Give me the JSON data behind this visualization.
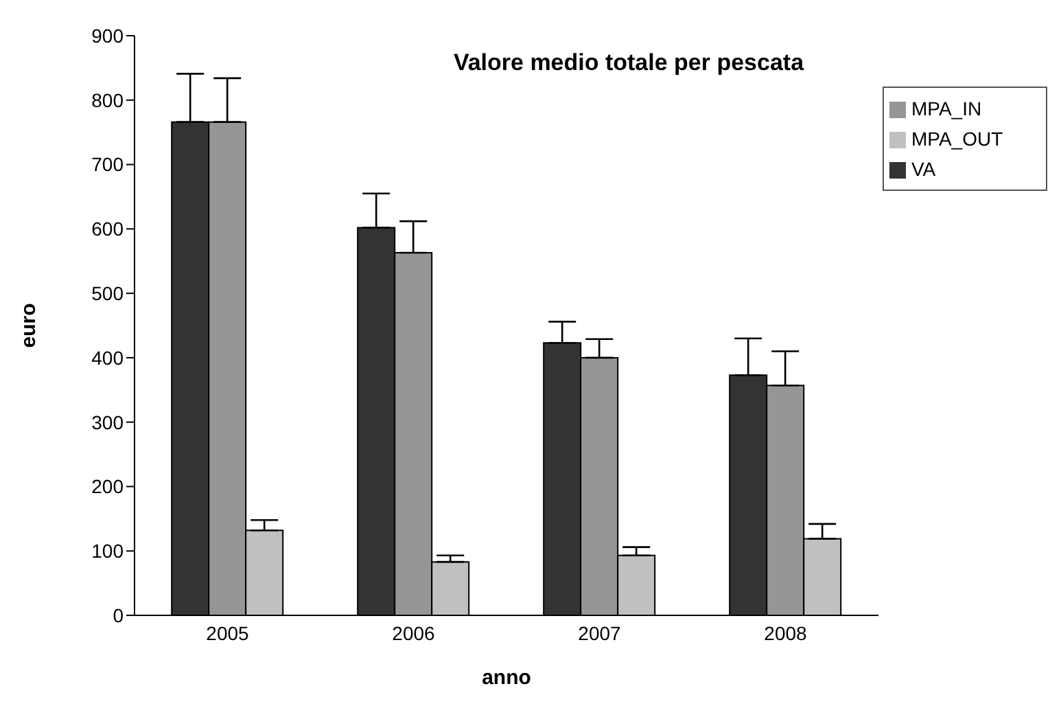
{
  "chart_data": {
    "type": "bar",
    "title": "Valore medio totale per pescata",
    "xlabel": "anno",
    "ylabel": "euro",
    "categories": [
      "2005",
      "2006",
      "2007",
      "2008"
    ],
    "series": [
      {
        "name": "VA",
        "color": "#333333",
        "values": [
          766,
          602,
          423,
          373
        ],
        "errors": [
          [
            766,
            841
          ],
          [
            602,
            655
          ],
          [
            423,
            456
          ],
          [
            373,
            430
          ]
        ]
      },
      {
        "name": "MPA_IN",
        "color": "#969696",
        "values": [
          766,
          563,
          400,
          357
        ],
        "errors": [
          [
            766,
            834
          ],
          [
            563,
            612
          ],
          [
            400,
            429
          ],
          [
            357,
            410
          ]
        ]
      },
      {
        "name": "MPA_OUT",
        "color": "#c0c0c0",
        "values": [
          132,
          83,
          93,
          119
        ],
        "errors": [
          [
            132,
            148
          ],
          [
            83,
            93
          ],
          [
            93,
            106
          ],
          [
            119,
            142
          ]
        ]
      }
    ],
    "ylim": [
      0,
      900
    ],
    "yticks": [
      0,
      100,
      200,
      300,
      400,
      500,
      600,
      700,
      800,
      900
    ],
    "grid": false,
    "legend": "top right"
  }
}
